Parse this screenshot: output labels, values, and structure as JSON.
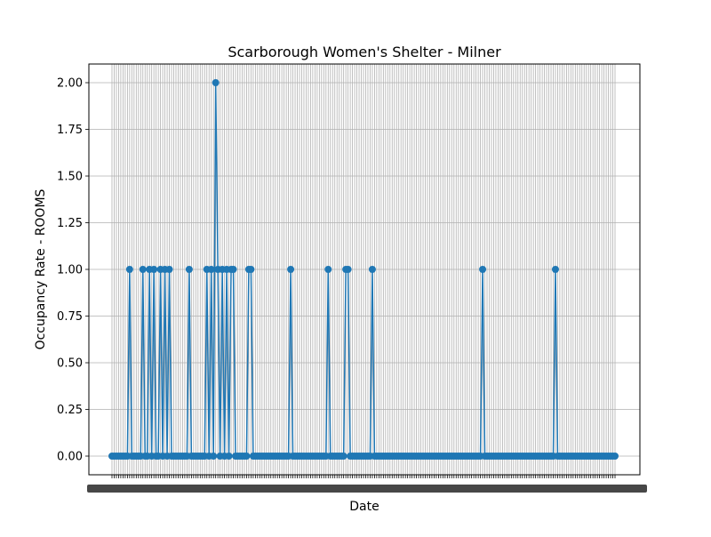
{
  "chart_data": {
    "type": "line",
    "title": "Scarborough Women's Shelter - Milner",
    "xlabel": "Date",
    "ylabel": "Occupancy Rate - ROOMS",
    "ylim": [
      -0.1,
      2.1
    ],
    "y_ticks": [
      "0.00",
      "0.25",
      "0.50",
      "0.75",
      "1.00",
      "1.25",
      "1.50",
      "1.75",
      "2.00"
    ],
    "y_tick_values": [
      0,
      0.25,
      0.5,
      0.75,
      1.0,
      1.25,
      1.5,
      1.75,
      2.0
    ],
    "grid": true,
    "marker": "circle",
    "line_color": "#1f77b4",
    "x_tick_labels_legible": false,
    "series": [
      {
        "values": [
          0,
          0,
          0,
          0,
          0,
          0,
          0,
          0,
          1,
          0,
          0,
          0,
          0,
          0,
          1,
          0,
          0,
          1,
          0,
          1,
          0,
          0,
          1,
          0,
          1,
          0,
          1,
          0,
          0,
          0,
          0,
          0,
          0,
          0,
          0,
          1,
          0,
          0,
          0,
          0,
          0,
          0,
          0,
          1,
          0,
          1,
          0,
          2,
          1,
          0,
          1,
          0,
          1,
          0,
          1,
          1,
          0,
          0,
          0,
          0,
          0,
          0,
          1,
          1,
          0,
          0,
          0,
          0,
          0,
          0,
          0,
          0,
          0,
          0,
          0,
          0,
          0,
          0,
          0,
          0,
          0,
          1,
          0,
          0,
          0,
          0,
          0,
          0,
          0,
          0,
          0,
          0,
          0,
          0,
          0,
          0,
          0,
          0,
          1,
          0,
          0,
          0,
          0,
          0,
          0,
          0,
          1,
          1,
          0,
          0,
          0,
          0,
          0,
          0,
          0,
          0,
          0,
          0,
          1,
          0,
          0,
          0,
          0,
          0,
          0,
          0,
          0,
          0,
          0,
          0,
          0,
          0,
          0,
          0,
          0,
          0,
          0,
          0,
          0,
          0,
          0,
          0,
          0,
          0,
          0,
          0,
          0,
          0,
          0,
          0,
          0,
          0,
          0,
          0,
          0,
          0,
          0,
          0,
          0,
          0,
          0,
          0,
          0,
          0,
          0,
          0,
          0,
          0,
          1,
          0,
          0,
          0,
          0,
          0,
          0,
          0,
          0,
          0,
          0,
          0,
          0,
          0,
          0,
          0,
          0,
          0,
          0,
          0,
          0,
          0,
          0,
          0,
          0,
          0,
          0,
          0,
          0,
          0,
          0,
          0,
          0,
          1,
          0,
          0,
          0,
          0,
          0,
          0,
          0,
          0,
          0,
          0,
          0,
          0,
          0,
          0,
          0,
          0,
          0,
          0,
          0,
          0,
          0,
          0,
          0,
          0,
          0,
          0,
          0
        ]
      }
    ]
  }
}
